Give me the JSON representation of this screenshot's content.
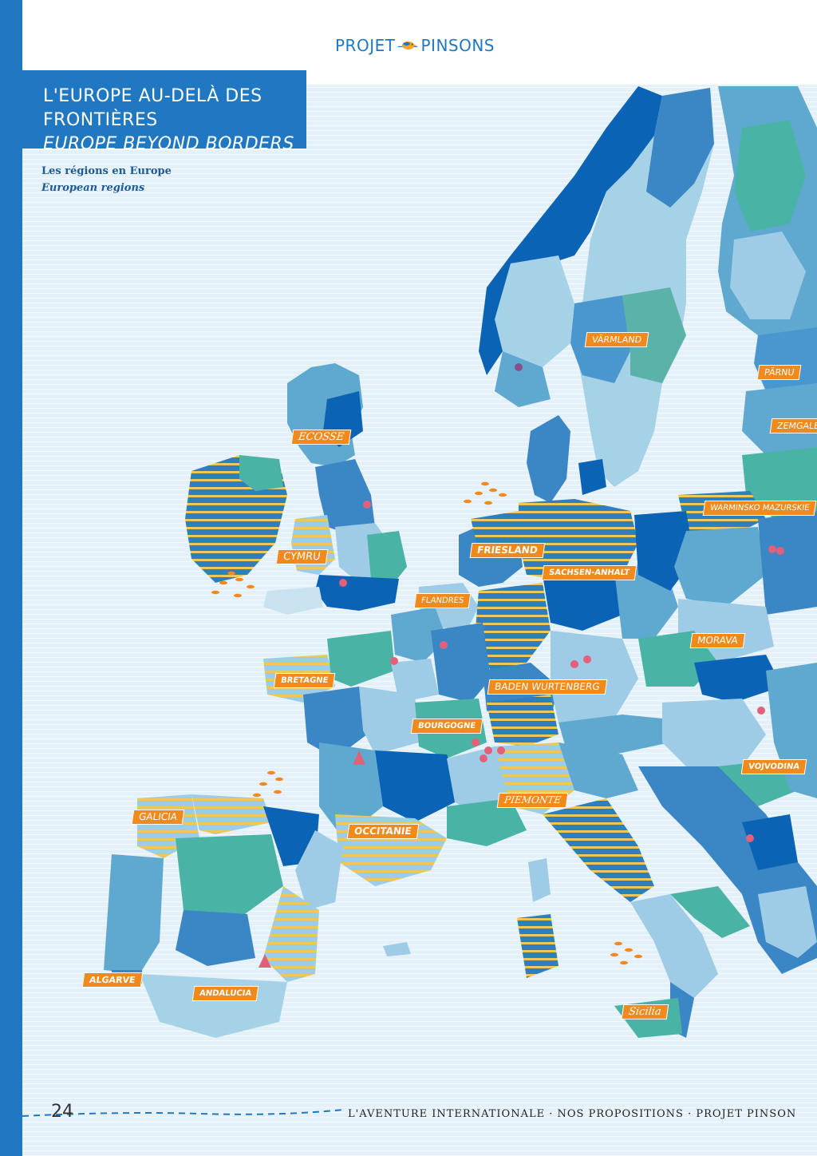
{
  "header": {
    "logo_left": "PROJET",
    "logo_right": "PINSONS",
    "title_fr": "L'EUROPE AU-DELÀ DES FRONTIÈRES",
    "title_en": "EUROPE BEYOND BORDERS",
    "subtitle_fr": "Les régions en Europe",
    "subtitle_en": "European regions"
  },
  "colors": {
    "brand": "#1f78c1",
    "label_bg": "#f08a1c",
    "sea": "#e4f1f8",
    "stripe": "#e8c95a"
  },
  "map": {
    "regions": [
      {
        "label": "VÄRMLAND"
      },
      {
        "label": "PÄRNU"
      },
      {
        "label": "ZEMGALE"
      },
      {
        "label": "ECOSSE"
      },
      {
        "label": "WARMINSKO MAZURSKIE"
      },
      {
        "label": "FRIESLAND"
      },
      {
        "label": "CYMRU"
      },
      {
        "label": "SACHSEN-ANHALT"
      },
      {
        "label": "FLANDRES"
      },
      {
        "label": "MORAVA"
      },
      {
        "label": "BRETAGNE"
      },
      {
        "label": "BADEN WURTENBERG"
      },
      {
        "label": "BOURGOGNE"
      },
      {
        "label": "VOJVODINA"
      },
      {
        "label": "PIEMONTE"
      },
      {
        "label": "GALICIA"
      },
      {
        "label": "OCCITANIE"
      },
      {
        "label": "ALGARVE"
      },
      {
        "label": "ANDALUCIA"
      },
      {
        "label": "Sicilia"
      }
    ]
  },
  "footer": {
    "page_number": "24",
    "text": "L'AVENTURE INTERNATIONALE · NOS PROPOSITIONS · PROJET PINSON"
  }
}
